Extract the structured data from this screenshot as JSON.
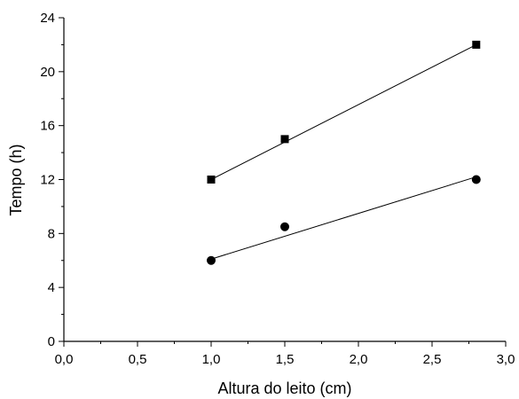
{
  "chart_data": {
    "type": "scatter",
    "xlabel": "Altura do leito (cm)",
    "ylabel": "Tempo (h)",
    "xlim": [
      0,
      3
    ],
    "ylim": [
      0,
      24
    ],
    "x_ticks": [
      "0,0",
      "0,5",
      "1,0",
      "1,5",
      "2,0",
      "2,5",
      "3,0"
    ],
    "y_ticks": [
      "0",
      "4",
      "8",
      "12",
      "16",
      "20",
      "24"
    ],
    "grid": false,
    "legend": "none",
    "series": [
      {
        "marker": "square",
        "color": "#000000",
        "points": [
          [
            1.0,
            12.0
          ],
          [
            1.5,
            15.0
          ],
          [
            2.8,
            22.0
          ]
        ],
        "fit": [
          [
            1.0,
            12.0
          ],
          [
            2.8,
            22.0
          ]
        ]
      },
      {
        "marker": "circle",
        "color": "#000000",
        "points": [
          [
            1.0,
            6.0
          ],
          [
            1.5,
            8.5
          ],
          [
            2.8,
            12.0
          ]
        ],
        "fit": [
          [
            1.0,
            6.1
          ],
          [
            2.8,
            12.2
          ]
        ]
      }
    ]
  }
}
